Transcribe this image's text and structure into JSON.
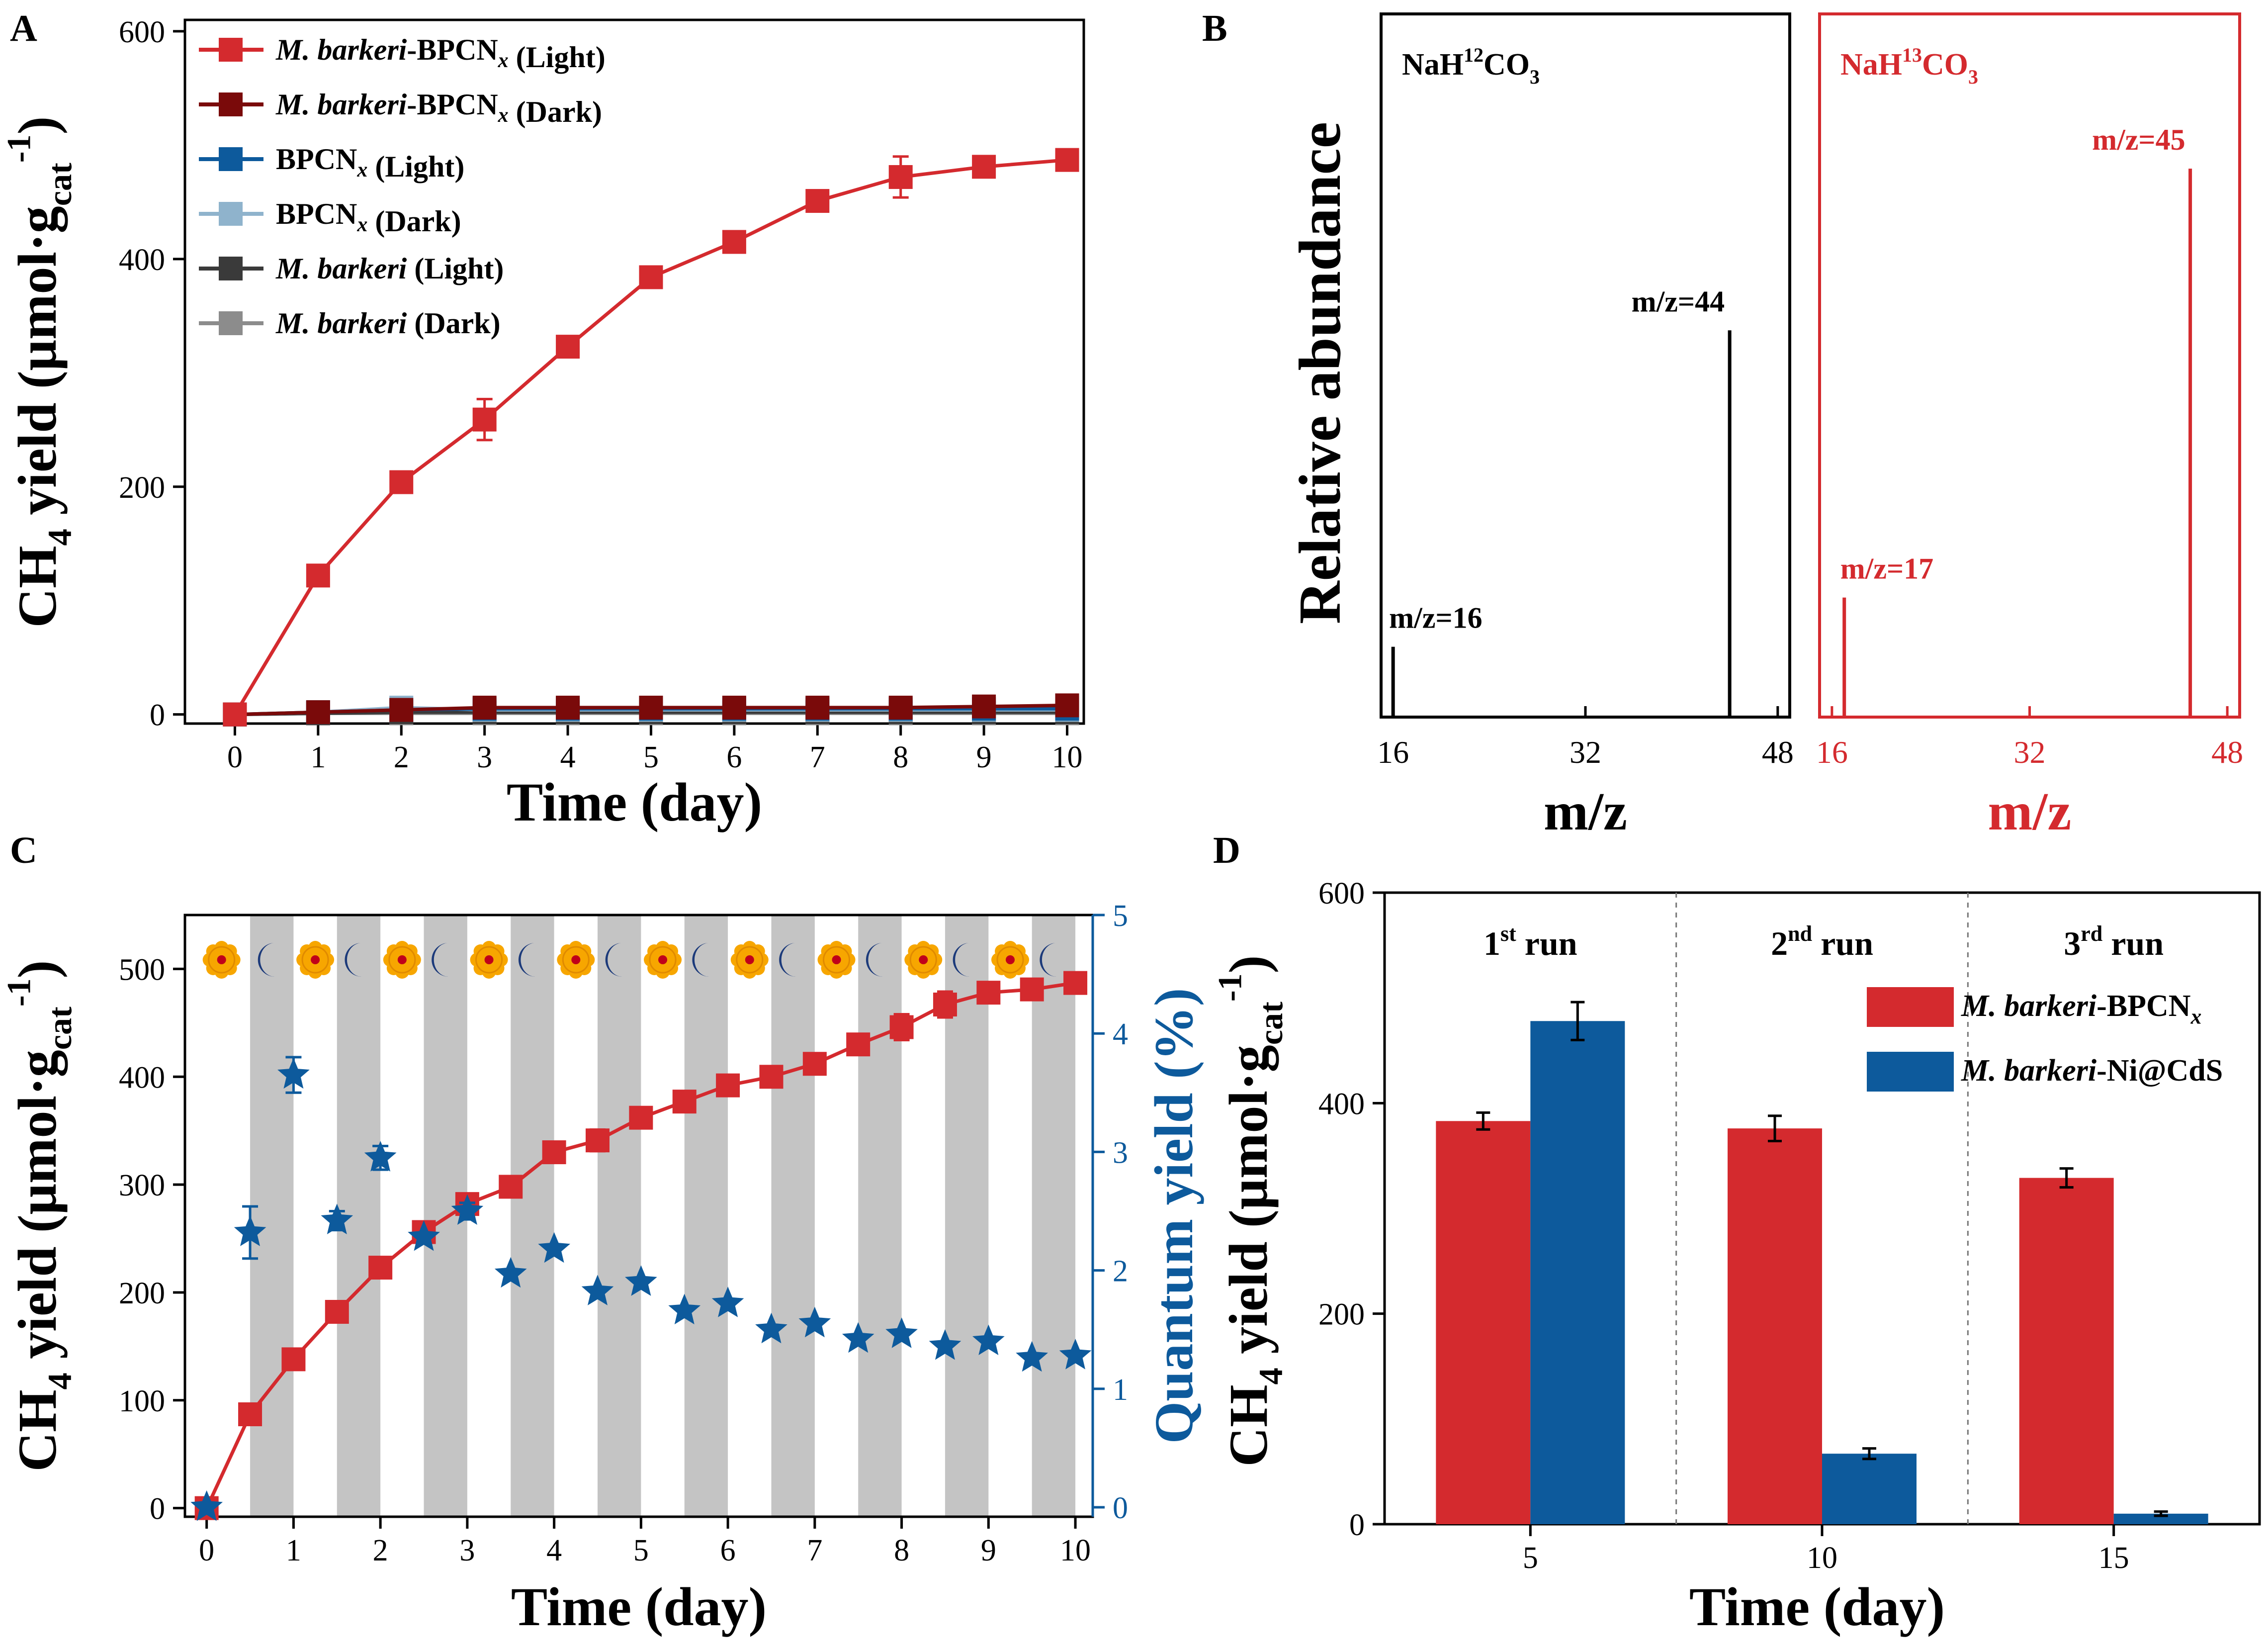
{
  "colors": {
    "red": "#d42a2e",
    "darkred": "#7a0a0a",
    "blue": "#0d5a9c",
    "lightblue": "#8fb3cc",
    "darkgray": "#3a3a3a",
    "gray": "#8c8c8c",
    "band": "#c4c4c4",
    "sun": "#f7a600",
    "sunCore": "#c0001a",
    "moon": "#1c3a7a"
  },
  "panel_labels": [
    "A",
    "B",
    "C",
    "D"
  ],
  "chart_data": [
    {
      "id": "A",
      "type": "line",
      "xlabel": "Time (day)",
      "ylabel": {
        "pre": "CH",
        "sub1": "4",
        "mid": " yield (μmol·g",
        "sub2": "cat",
        "sup": "-1",
        "post": ")"
      },
      "xlim": [
        -0.6,
        10.2
      ],
      "ylim": [
        -8,
        610
      ],
      "xticks": [
        0,
        1,
        2,
        3,
        4,
        5,
        6,
        7,
        8,
        9,
        10
      ],
      "yticks": [
        0,
        200,
        400,
        600
      ],
      "x": [
        0,
        1,
        2,
        3,
        4,
        5,
        6,
        7,
        8,
        9,
        10
      ],
      "series": [
        {
          "name_parts": [
            {
              "t": "M. barkeri",
              "i": true
            },
            {
              "t": "-BPCN"
            },
            {
              "t": "x",
              "i": true,
              "sub": true
            },
            {
              "t": " (Light)"
            }
          ],
          "color": "red",
          "values": [
            0,
            122,
            204,
            259,
            323,
            384,
            415,
            451,
            472,
            481,
            487
          ],
          "err": [
            0,
            5,
            5,
            18,
            8,
            5,
            5,
            5,
            18,
            6,
            5
          ]
        },
        {
          "name_parts": [
            {
              "t": "M. barkeri",
              "i": true
            },
            {
              "t": "-BPCN"
            },
            {
              "t": "x",
              "i": true,
              "sub": true
            },
            {
              "t": " (Dark)"
            }
          ],
          "color": "darkred",
          "values": [
            0,
            2,
            4,
            6,
            6,
            6,
            6,
            6,
            6,
            7,
            8
          ],
          "err": [
            0,
            1,
            1,
            1,
            1,
            1,
            1,
            1,
            1,
            2,
            2
          ]
        },
        {
          "name_parts": [
            {
              "t": "BPCN"
            },
            {
              "t": "x",
              "i": true,
              "sub": true
            },
            {
              "t": " (Light)"
            }
          ],
          "color": "blue",
          "values": [
            0,
            2,
            4,
            5,
            5,
            5,
            5,
            5,
            5,
            5,
            5
          ],
          "err": [
            0,
            2,
            2,
            3,
            3,
            3,
            3,
            3,
            3,
            4,
            4
          ]
        },
        {
          "name_parts": [
            {
              "t": "BPCN"
            },
            {
              "t": "x",
              "i": true,
              "sub": true
            },
            {
              "t": " (Dark)"
            }
          ],
          "color": "lightblue",
          "values": [
            0,
            2,
            6,
            4,
            4,
            4,
            4,
            4,
            4,
            4,
            4
          ],
          "err": [
            0,
            1,
            2,
            2,
            2,
            2,
            2,
            2,
            2,
            2,
            2
          ]
        },
        {
          "name_parts": [
            {
              "t": "M. barkeri",
              "i": true
            },
            {
              "t": " (Light)"
            }
          ],
          "color": "darkgray",
          "values": [
            0,
            1,
            2,
            2,
            2,
            2,
            2,
            2,
            2,
            2,
            2
          ],
          "err": [
            0,
            1,
            1,
            1,
            1,
            1,
            1,
            1,
            1,
            1,
            1
          ]
        },
        {
          "name_parts": [
            {
              "t": "M. barkeri",
              "i": true
            },
            {
              "t": " (Dark)"
            }
          ],
          "color": "gray",
          "values": [
            0,
            1,
            1,
            1,
            1,
            1,
            1,
            1,
            1,
            1,
            1
          ],
          "err": [
            0,
            1,
            1,
            1,
            1,
            1,
            1,
            1,
            1,
            1,
            1
          ]
        }
      ]
    },
    {
      "id": "B",
      "type": "bar",
      "subtype": "mass-spectrum",
      "ylabel": "Relative abundance",
      "xlabel": "m/z",
      "xlim": [
        15,
        49
      ],
      "ylim": [
        0,
        100
      ],
      "xticks": [
        16,
        32,
        48
      ],
      "panels": [
        {
          "title": {
            "pre": "NaH",
            "sup": "12",
            "mid": "CO",
            "sub": "3"
          },
          "color": "black",
          "peaks": [
            {
              "mz": 16,
              "h": 10,
              "label": "m/z=16"
            },
            {
              "mz": 44,
              "h": 55,
              "label": "m/z=44"
            }
          ]
        },
        {
          "title": {
            "pre": "NaH",
            "sup": "13",
            "mid": "CO",
            "sub": "3"
          },
          "color": "red",
          "peaks": [
            {
              "mz": 17,
              "h": 17,
              "label": "m/z=17"
            },
            {
              "mz": 45,
              "h": 78,
              "label": "m/z=45"
            }
          ]
        }
      ]
    },
    {
      "id": "C",
      "type": "line",
      "xlabel": "Time (day)",
      "ylabel": {
        "pre": "CH",
        "sub1": "4",
        "mid": " yield (μmol·g",
        "sub2": "cat",
        "sup": "-1",
        "post": ")"
      },
      "y2label": "Quantum yield (%)",
      "xlim": [
        -0.25,
        10.2
      ],
      "ylim": [
        -8,
        550
      ],
      "y2lim": [
        -0.08,
        5
      ],
      "xticks": [
        0,
        1,
        2,
        3,
        4,
        5,
        6,
        7,
        8,
        9,
        10
      ],
      "yticks": [
        0,
        100,
        200,
        300,
        400,
        500
      ],
      "y2ticks": [
        0,
        1,
        2,
        3,
        4,
        5
      ],
      "dark_bands": [
        [
          0.5,
          1
        ],
        [
          1.5,
          2
        ],
        [
          2.5,
          3
        ],
        [
          3.5,
          4
        ],
        [
          4.5,
          5
        ],
        [
          5.5,
          6
        ],
        [
          6.5,
          7
        ],
        [
          7.5,
          8
        ],
        [
          8.5,
          9
        ],
        [
          9.5,
          10
        ]
      ],
      "icons": [
        "sun",
        "moon",
        "sun",
        "moon",
        "sun",
        "moon",
        "sun",
        "moon",
        "sun",
        "moon",
        "sun",
        "moon",
        "sun",
        "moon",
        "sun",
        "moon",
        "sun",
        "moon",
        "sun",
        "moon"
      ],
      "series_ch4": {
        "x": [
          0,
          0.5,
          1,
          1.5,
          2,
          2.5,
          3,
          3.5,
          4,
          4.5,
          5,
          5.5,
          6,
          6.5,
          7,
          7.5,
          8,
          8.5,
          9,
          9.5,
          10
        ],
        "values": [
          0,
          87,
          138,
          182,
          223,
          256,
          282,
          298,
          330,
          341,
          362,
          377,
          392,
          400,
          412,
          430,
          446,
          467,
          478,
          481,
          487
        ],
        "err": [
          0,
          3,
          3,
          3,
          3,
          3,
          3,
          3,
          4,
          10,
          3,
          3,
          3,
          3,
          3,
          3,
          12,
          12,
          4,
          4,
          3
        ]
      },
      "series_qy": {
        "x": [
          0,
          0.5,
          1,
          1.5,
          2,
          2.5,
          3,
          3.5,
          4,
          4.5,
          5,
          5.5,
          6,
          6.5,
          7,
          7.5,
          8,
          8.5,
          9,
          9.5,
          10
        ],
        "values": [
          0,
          2.32,
          3.65,
          2.42,
          2.95,
          2.28,
          2.5,
          1.97,
          2.18,
          1.82,
          1.9,
          1.66,
          1.72,
          1.5,
          1.55,
          1.42,
          1.46,
          1.36,
          1.4,
          1.26,
          1.28
        ],
        "err": [
          0,
          0.22,
          0.15,
          0.08,
          0.1,
          0,
          0.07,
          0,
          0,
          0,
          0,
          0,
          0,
          0,
          0,
          0,
          0,
          0,
          0,
          0,
          0
        ]
      }
    },
    {
      "id": "D",
      "type": "bar",
      "xlabel": "Time (day)",
      "ylabel": {
        "pre": "CH",
        "sub1": "4",
        "mid": " yield (μmol·g",
        "sub2": "cat",
        "sup": "-1",
        "post": ")"
      },
      "ylim": [
        0,
        600
      ],
      "yticks": [
        0,
        200,
        400,
        600
      ],
      "categories": [
        "5",
        "10",
        "15"
      ],
      "run_labels": [
        {
          "n": "1",
          "sup": "st",
          "rest": " run"
        },
        {
          "n": "2",
          "sup": "nd",
          "rest": " run"
        },
        {
          "n": "3",
          "sup": "rd",
          "rest": " run"
        }
      ],
      "series": [
        {
          "name_parts": [
            {
              "t": "M. barkeri",
              "i": true
            },
            {
              "t": "-BPCN"
            },
            {
              "t": "x",
              "i": true,
              "sub": true
            }
          ],
          "color": "red",
          "values": [
            383,
            376,
            329
          ],
          "err": [
            8,
            12,
            9
          ]
        },
        {
          "name_parts": [
            {
              "t": "M. barkeri",
              "i": true
            },
            {
              "t": "-Ni@CdS"
            }
          ],
          "color": "blue",
          "values": [
            478,
            67,
            10
          ],
          "err": [
            18,
            5,
            2
          ]
        }
      ]
    }
  ]
}
